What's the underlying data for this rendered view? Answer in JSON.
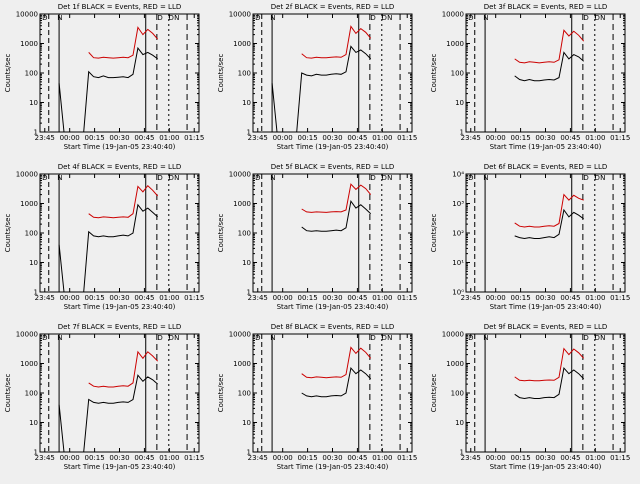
{
  "chart_data": [
    {
      "type": "line",
      "title": "Det 1f BLACK = Events, RED = LLD",
      "xlabel": "Start Time (19-Jan-05 23:40:40)",
      "ylabel": "Counts/sec",
      "yscale": "log",
      "ylim": [
        1,
        10000
      ],
      "x_ticks": [
        "23:45",
        "00:00",
        "00:15",
        "00:30",
        "00:45",
        "01:00",
        "01:15"
      ],
      "y_ticks": [
        "1",
        "10",
        "100",
        "1000",
        "10000"
      ],
      "marker_labels": [
        "D",
        "N",
        "D",
        "D",
        "N"
      ],
      "series": [
        {
          "color": "#000000",
          "values": [
            45,
            1,
            1,
            1,
            1,
            1,
            110,
            75,
            70,
            80,
            70,
            70,
            72,
            75,
            70,
            90,
            700,
            420,
            500,
            400,
            300
          ]
        },
        {
          "color": "#cc0000",
          "values": [
            0,
            0,
            0,
            0,
            0,
            0,
            500,
            330,
            320,
            340,
            330,
            320,
            330,
            340,
            330,
            400,
            3500,
            2000,
            3000,
            2200,
            1400
          ]
        }
      ]
    },
    {
      "type": "line",
      "title": "Det 2f BLACK = Events, RED = LLD",
      "xlabel": "Start Time (19-Jan-05 23:40:40)",
      "ylabel": "Counts/sec",
      "yscale": "log",
      "ylim": [
        1,
        10000
      ],
      "x_ticks": [
        "23:45",
        "00:00",
        "00:15",
        "00:30",
        "00:45",
        "01:00",
        "01:15"
      ],
      "y_ticks": [
        "1",
        "10",
        "100",
        "1000",
        "10000"
      ],
      "marker_labels": [
        "D",
        "N",
        "D",
        "D",
        "N"
      ],
      "series": [
        {
          "color": "#000000",
          "values": [
            45,
            1,
            1,
            1,
            1,
            1,
            100,
            85,
            80,
            90,
            85,
            85,
            90,
            95,
            90,
            110,
            800,
            500,
            600,
            450,
            300
          ]
        },
        {
          "color": "#cc0000",
          "values": [
            0,
            0,
            0,
            0,
            0,
            0,
            450,
            330,
            320,
            340,
            330,
            330,
            340,
            350,
            340,
            420,
            3800,
            2200,
            3200,
            2400,
            1500
          ]
        }
      ]
    },
    {
      "type": "line",
      "title": "Det 3f BLACK = Events, RED = LLD",
      "xlabel": "Start Time (19-Jan-05 23:40:40)",
      "ylabel": "Counts/sec",
      "yscale": "log",
      "ylim": [
        1,
        10000
      ],
      "x_ticks": [
        "23:45",
        "00:00",
        "00:15",
        "00:30",
        "00:45",
        "01:00",
        "01:15"
      ],
      "y_ticks": [
        "1",
        "10",
        "100",
        "1000",
        "10000"
      ],
      "marker_labels": [
        "D",
        "N",
        "D",
        "D",
        "N"
      ],
      "series": [
        {
          "color": "#000000",
          "values": [
            0,
            0,
            0,
            0,
            0,
            0,
            80,
            60,
            55,
            60,
            55,
            55,
            58,
            60,
            58,
            70,
            500,
            300,
            420,
            350,
            250
          ]
        },
        {
          "color": "#cc0000",
          "values": [
            0,
            0,
            0,
            0,
            0,
            0,
            300,
            230,
            220,
            240,
            230,
            220,
            230,
            240,
            230,
            280,
            2800,
            1800,
            2600,
            1900,
            1200
          ]
        }
      ]
    },
    {
      "type": "line",
      "title": "Det 4f BLACK = Events, RED = LLD",
      "xlabel": "Start Time (19-Jan-05 23:40:40)",
      "ylabel": "Counts/sec",
      "yscale": "log",
      "ylim": [
        1,
        10000
      ],
      "x_ticks": [
        "23:45",
        "00:00",
        "00:15",
        "00:30",
        "00:45",
        "01:00",
        "01:15"
      ],
      "y_ticks": [
        "1",
        "10",
        "100",
        "1000",
        "10000"
      ],
      "marker_labels": [
        "D",
        "N",
        "D",
        "D",
        "N"
      ],
      "series": [
        {
          "color": "#000000",
          "values": [
            40,
            1,
            1,
            1,
            1,
            1,
            110,
            80,
            75,
            80,
            75,
            75,
            80,
            85,
            80,
            100,
            900,
            550,
            700,
            500,
            350
          ]
        },
        {
          "color": "#cc0000",
          "values": [
            0,
            0,
            0,
            0,
            0,
            0,
            450,
            340,
            330,
            350,
            340,
            330,
            340,
            350,
            340,
            450,
            3800,
            2500,
            4000,
            2800,
            1800
          ]
        }
      ]
    },
    {
      "type": "line",
      "title": "Det 5f BLACK = Events, RED = LLD",
      "xlabel": "Start Time (19-Jan-05 23:40:40)",
      "ylabel": "Counts/sec",
      "yscale": "log",
      "ylim": [
        1,
        10000
      ],
      "x_ticks": [
        "23:45",
        "00:00",
        "00:15",
        "00:30",
        "00:45",
        "01:00",
        "01:15"
      ],
      "y_ticks": [
        "1",
        "10",
        "100",
        "1000",
        "10000"
      ],
      "marker_labels": [
        "D",
        "N",
        "D",
        "D",
        "N"
      ],
      "series": [
        {
          "color": "#000000",
          "values": [
            0,
            0,
            0,
            0,
            0,
            0,
            160,
            120,
            115,
            120,
            115,
            115,
            120,
            125,
            120,
            150,
            1200,
            700,
            900,
            650,
            450
          ]
        },
        {
          "color": "#cc0000",
          "values": [
            0,
            0,
            0,
            0,
            0,
            0,
            650,
            520,
            500,
            520,
            510,
            500,
            520,
            530,
            520,
            600,
            4500,
            3000,
            4200,
            3200,
            2000
          ]
        }
      ]
    },
    {
      "type": "line",
      "title": "Det 6f BLACK = Events, RED = LLD",
      "xlabel": "Start Time (19-Jan-05 23:40:40)",
      "ylabel": "Counts/sec",
      "yscale": "log",
      "ylim": [
        1,
        10000
      ],
      "x_ticks": [
        "23:45",
        "00:00",
        "00:15",
        "00:30",
        "00:45",
        "01:00",
        "01:15"
      ],
      "y_ticks": [
        "10⁰",
        "10¹",
        "10²",
        "10³",
        "10⁴"
      ],
      "marker_labels": [
        "D",
        "N",
        "D",
        "D",
        "N"
      ],
      "series": [
        {
          "color": "#000000",
          "values": [
            0,
            0,
            0,
            0,
            0,
            0,
            80,
            70,
            65,
            70,
            65,
            65,
            70,
            75,
            70,
            90,
            600,
            350,
            500,
            400,
            300
          ]
        },
        {
          "color": "#cc0000",
          "values": [
            0,
            0,
            0,
            0,
            0,
            0,
            220,
            170,
            160,
            170,
            160,
            160,
            170,
            175,
            170,
            210,
            2000,
            1300,
            1900,
            1500,
            1300
          ]
        }
      ]
    },
    {
      "type": "line",
      "title": "Det 7f BLACK = Events, RED = LLD",
      "xlabel": "Start Time (19-Jan-05 23:40:40)",
      "ylabel": "Counts/sec",
      "yscale": "log",
      "ylim": [
        1,
        10000
      ],
      "x_ticks": [
        "23:45",
        "00:00",
        "00:15",
        "00:30",
        "00:45",
        "01:00",
        "01:15"
      ],
      "y_ticks": [
        "1",
        "10",
        "100",
        "1000",
        "10000"
      ],
      "marker_labels": [
        "D",
        "N",
        "D",
        "D",
        "N"
      ],
      "series": [
        {
          "color": "#000000",
          "values": [
            40,
            1,
            1,
            1,
            1,
            1,
            60,
            48,
            45,
            48,
            45,
            45,
            48,
            50,
            48,
            60,
            400,
            250,
            350,
            280,
            200
          ]
        },
        {
          "color": "#cc0000",
          "values": [
            0,
            0,
            0,
            0,
            0,
            0,
            220,
            170,
            160,
            170,
            160,
            160,
            170,
            175,
            170,
            220,
            2500,
            1500,
            2500,
            1800,
            1200
          ]
        }
      ]
    },
    {
      "type": "line",
      "title": "Det 8f BLACK = Events, RED = LLD",
      "xlabel": "Start Time (19-Jan-05 23:40:40)",
      "ylabel": "Counts/sec",
      "yscale": "log",
      "ylim": [
        1,
        10000
      ],
      "x_ticks": [
        "23:45",
        "00:00",
        "00:15",
        "00:30",
        "00:45",
        "01:00",
        "01:15"
      ],
      "y_ticks": [
        "1",
        "10",
        "100",
        "1000",
        "10000"
      ],
      "marker_labels": [
        "D",
        "N",
        "D",
        "D",
        "N"
      ],
      "series": [
        {
          "color": "#000000",
          "values": [
            0,
            0,
            0,
            0,
            0,
            0,
            100,
            80,
            75,
            80,
            75,
            75,
            80,
            82,
            80,
            100,
            700,
            450,
            600,
            450,
            300
          ]
        },
        {
          "color": "#cc0000",
          "values": [
            0,
            0,
            0,
            0,
            0,
            0,
            450,
            340,
            330,
            350,
            340,
            330,
            340,
            350,
            340,
            420,
            3500,
            2200,
            3300,
            2400,
            1500
          ]
        }
      ]
    },
    {
      "type": "line",
      "title": "Det 9f BLACK = Events, RED = LLD",
      "xlabel": "Start Time (19-Jan-05 23:40:40)",
      "ylabel": "Counts/sec",
      "yscale": "log",
      "ylim": [
        1,
        10000
      ],
      "x_ticks": [
        "23:45",
        "00:00",
        "00:15",
        "00:30",
        "00:45",
        "01:00",
        "01:15"
      ],
      "y_ticks": [
        "1",
        "10",
        "100",
        "1000",
        "10000"
      ],
      "marker_labels": [
        "D",
        "N",
        "D",
        "D",
        "N"
      ],
      "series": [
        {
          "color": "#000000",
          "values": [
            0,
            0,
            0,
            0,
            0,
            0,
            90,
            70,
            65,
            70,
            65,
            65,
            70,
            72,
            70,
            90,
            700,
            450,
            600,
            450,
            300
          ]
        },
        {
          "color": "#cc0000",
          "values": [
            0,
            0,
            0,
            0,
            0,
            0,
            350,
            270,
            260,
            270,
            260,
            260,
            270,
            275,
            270,
            340,
            3200,
            2000,
            3100,
            2300,
            1500
          ]
        }
      ]
    }
  ]
}
